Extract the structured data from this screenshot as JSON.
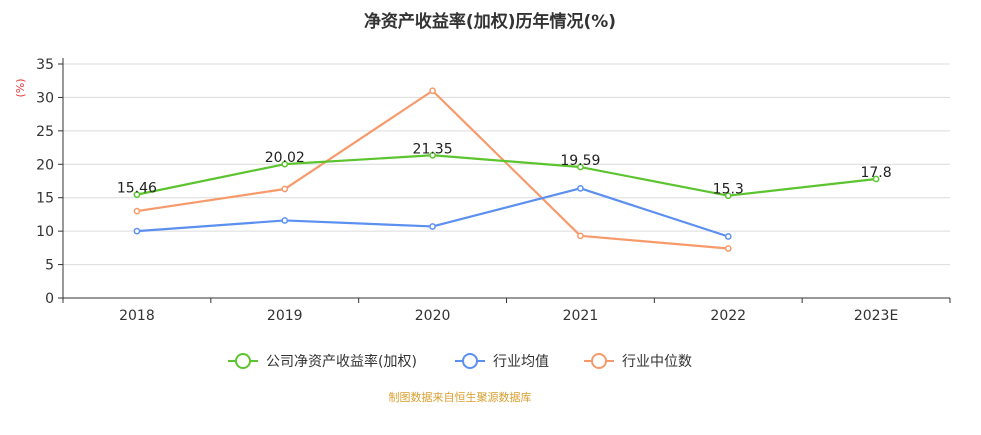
{
  "chart_data": {
    "type": "line",
    "title": "净资产收益率(加权)历年情况(%)",
    "ylabel": "(%)",
    "xlabel": "",
    "categories": [
      "2018",
      "2019",
      "2020",
      "2021",
      "2022",
      "2023E"
    ],
    "yticks": [
      "0",
      "5",
      "10",
      "15",
      "20",
      "25",
      "30",
      "35"
    ],
    "ylim": [
      0,
      35
    ],
    "grid": true,
    "legend_position": "bottom",
    "series": [
      {
        "name": "公司净资产收益率(加权)",
        "color": "#5cc42f",
        "values": [
          15.46,
          20.02,
          21.35,
          19.59,
          15.3,
          17.8
        ],
        "labels": [
          "15.46",
          "20.02",
          "21.35",
          "19.59",
          "15.3",
          "17.8"
        ]
      },
      {
        "name": "行业均值",
        "color": "#5b8ff0",
        "values": [
          10.0,
          11.6,
          10.7,
          16.4,
          9.2,
          null
        ]
      },
      {
        "name": "行业中位数",
        "color": "#f79a6b",
        "values": [
          13.0,
          16.3,
          31.0,
          9.3,
          7.4,
          null
        ]
      }
    ],
    "source": "制图数据来自恒生聚源数据库"
  }
}
